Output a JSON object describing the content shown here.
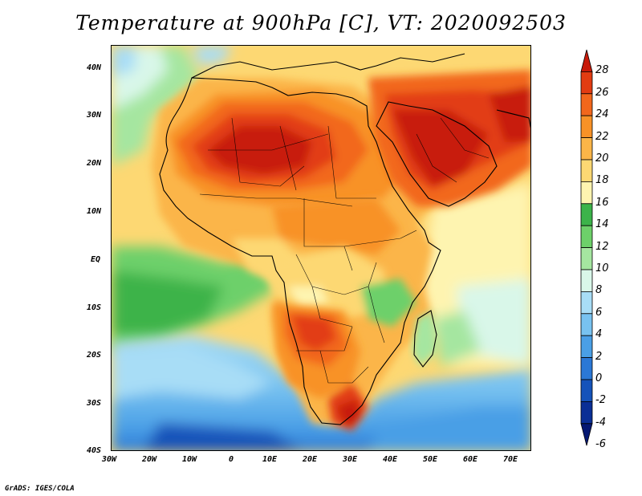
{
  "title": "Temperature at 900hPa [C], VT: 2020092503",
  "credit": "GrADS: IGES/COLA",
  "lat_labels": [
    "40N",
    "30N",
    "20N",
    "10N",
    "EQ",
    "10S",
    "20S",
    "30S",
    "40S"
  ],
  "lon_labels": [
    "30W",
    "20W",
    "10W",
    "0",
    "10E",
    "20E",
    "30E",
    "40E",
    "50E",
    "60E",
    "70E"
  ],
  "colorbar": {
    "labels": [
      "28",
      "26",
      "24",
      "22",
      "20",
      "18",
      "16",
      "14",
      "12",
      "10",
      "8",
      "6",
      "4",
      "2",
      "0",
      "-2",
      "-4",
      "-6"
    ],
    "colors": [
      "#c81a0a",
      "#e23c12",
      "#f2671c",
      "#f89227",
      "#fbb548",
      "#fdd873",
      "#fef4b0",
      "#3cb34a",
      "#6dd06a",
      "#a5e6a0",
      "#d9f7e9",
      "#a8ddf6",
      "#78c2f0",
      "#4a9fe6",
      "#2b78d6",
      "#1553ba",
      "#0a2f96",
      "#051872"
    ]
  }
}
